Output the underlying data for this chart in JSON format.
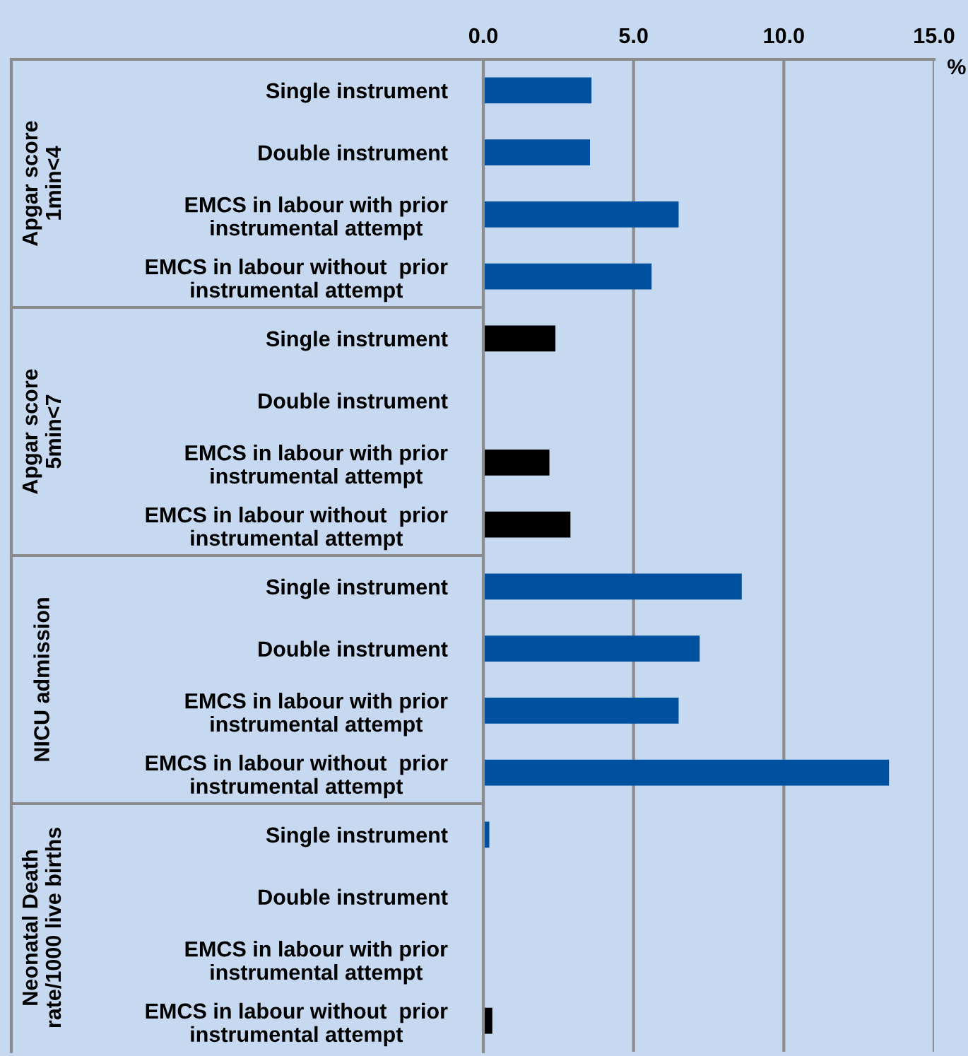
{
  "chart_data": {
    "type": "bar",
    "orientation": "horizontal",
    "categories": [
      "Single instrument",
      "Double instrument",
      "EMCS in labour with prior\ninstrumental attempt",
      "EMCS in labour without  prior\ninstrumental attempt",
      "Single instrument",
      "Double instrument",
      "EMCS in labour with prior\ninstrumental attempt",
      "EMCS in labour without  prior\ninstrumental attempt",
      "Single instrument",
      "Double instrument",
      "EMCS in labour with prior\ninstrumental attempt",
      "EMCS in labour without  prior\ninstrumental attempt",
      "Single instrument",
      "Double instrument",
      "EMCS in labour with prior\ninstrumental attempt",
      "EMCS in labour without  prior\ninstrumental attempt"
    ],
    "values": [
      3.6,
      3.55,
      6.5,
      5.6,
      2.4,
      null,
      2.2,
      2.9,
      8.6,
      7.2,
      6.5,
      13.5,
      0.2,
      null,
      null,
      0.3
    ],
    "colors": [
      "#0050a0",
      "#0050a0",
      "#0050a0",
      "#0050a0",
      "#000000",
      "#000000",
      "#000000",
      "#000000",
      "#0050a0",
      "#0050a0",
      "#0050a0",
      "#0050a0",
      "#0050a0",
      "#0050a0",
      "#000000",
      "#000000"
    ],
    "annotations": [
      "Apgar score\n1min<4",
      "Apgar score\n5min<7",
      "NICU admission",
      "Neonatal Death\nrate/1000 live births"
    ],
    "xlabel": "%",
    "xlim": [
      0,
      15
    ],
    "xticks": [
      {
        "value": 0,
        "label": "0.0"
      },
      {
        "value": 5,
        "label": "5.0"
      },
      {
        "value": 10,
        "label": "10.0"
      },
      {
        "value": 15,
        "label": "15.0"
      }
    ],
    "grid": "x"
  }
}
